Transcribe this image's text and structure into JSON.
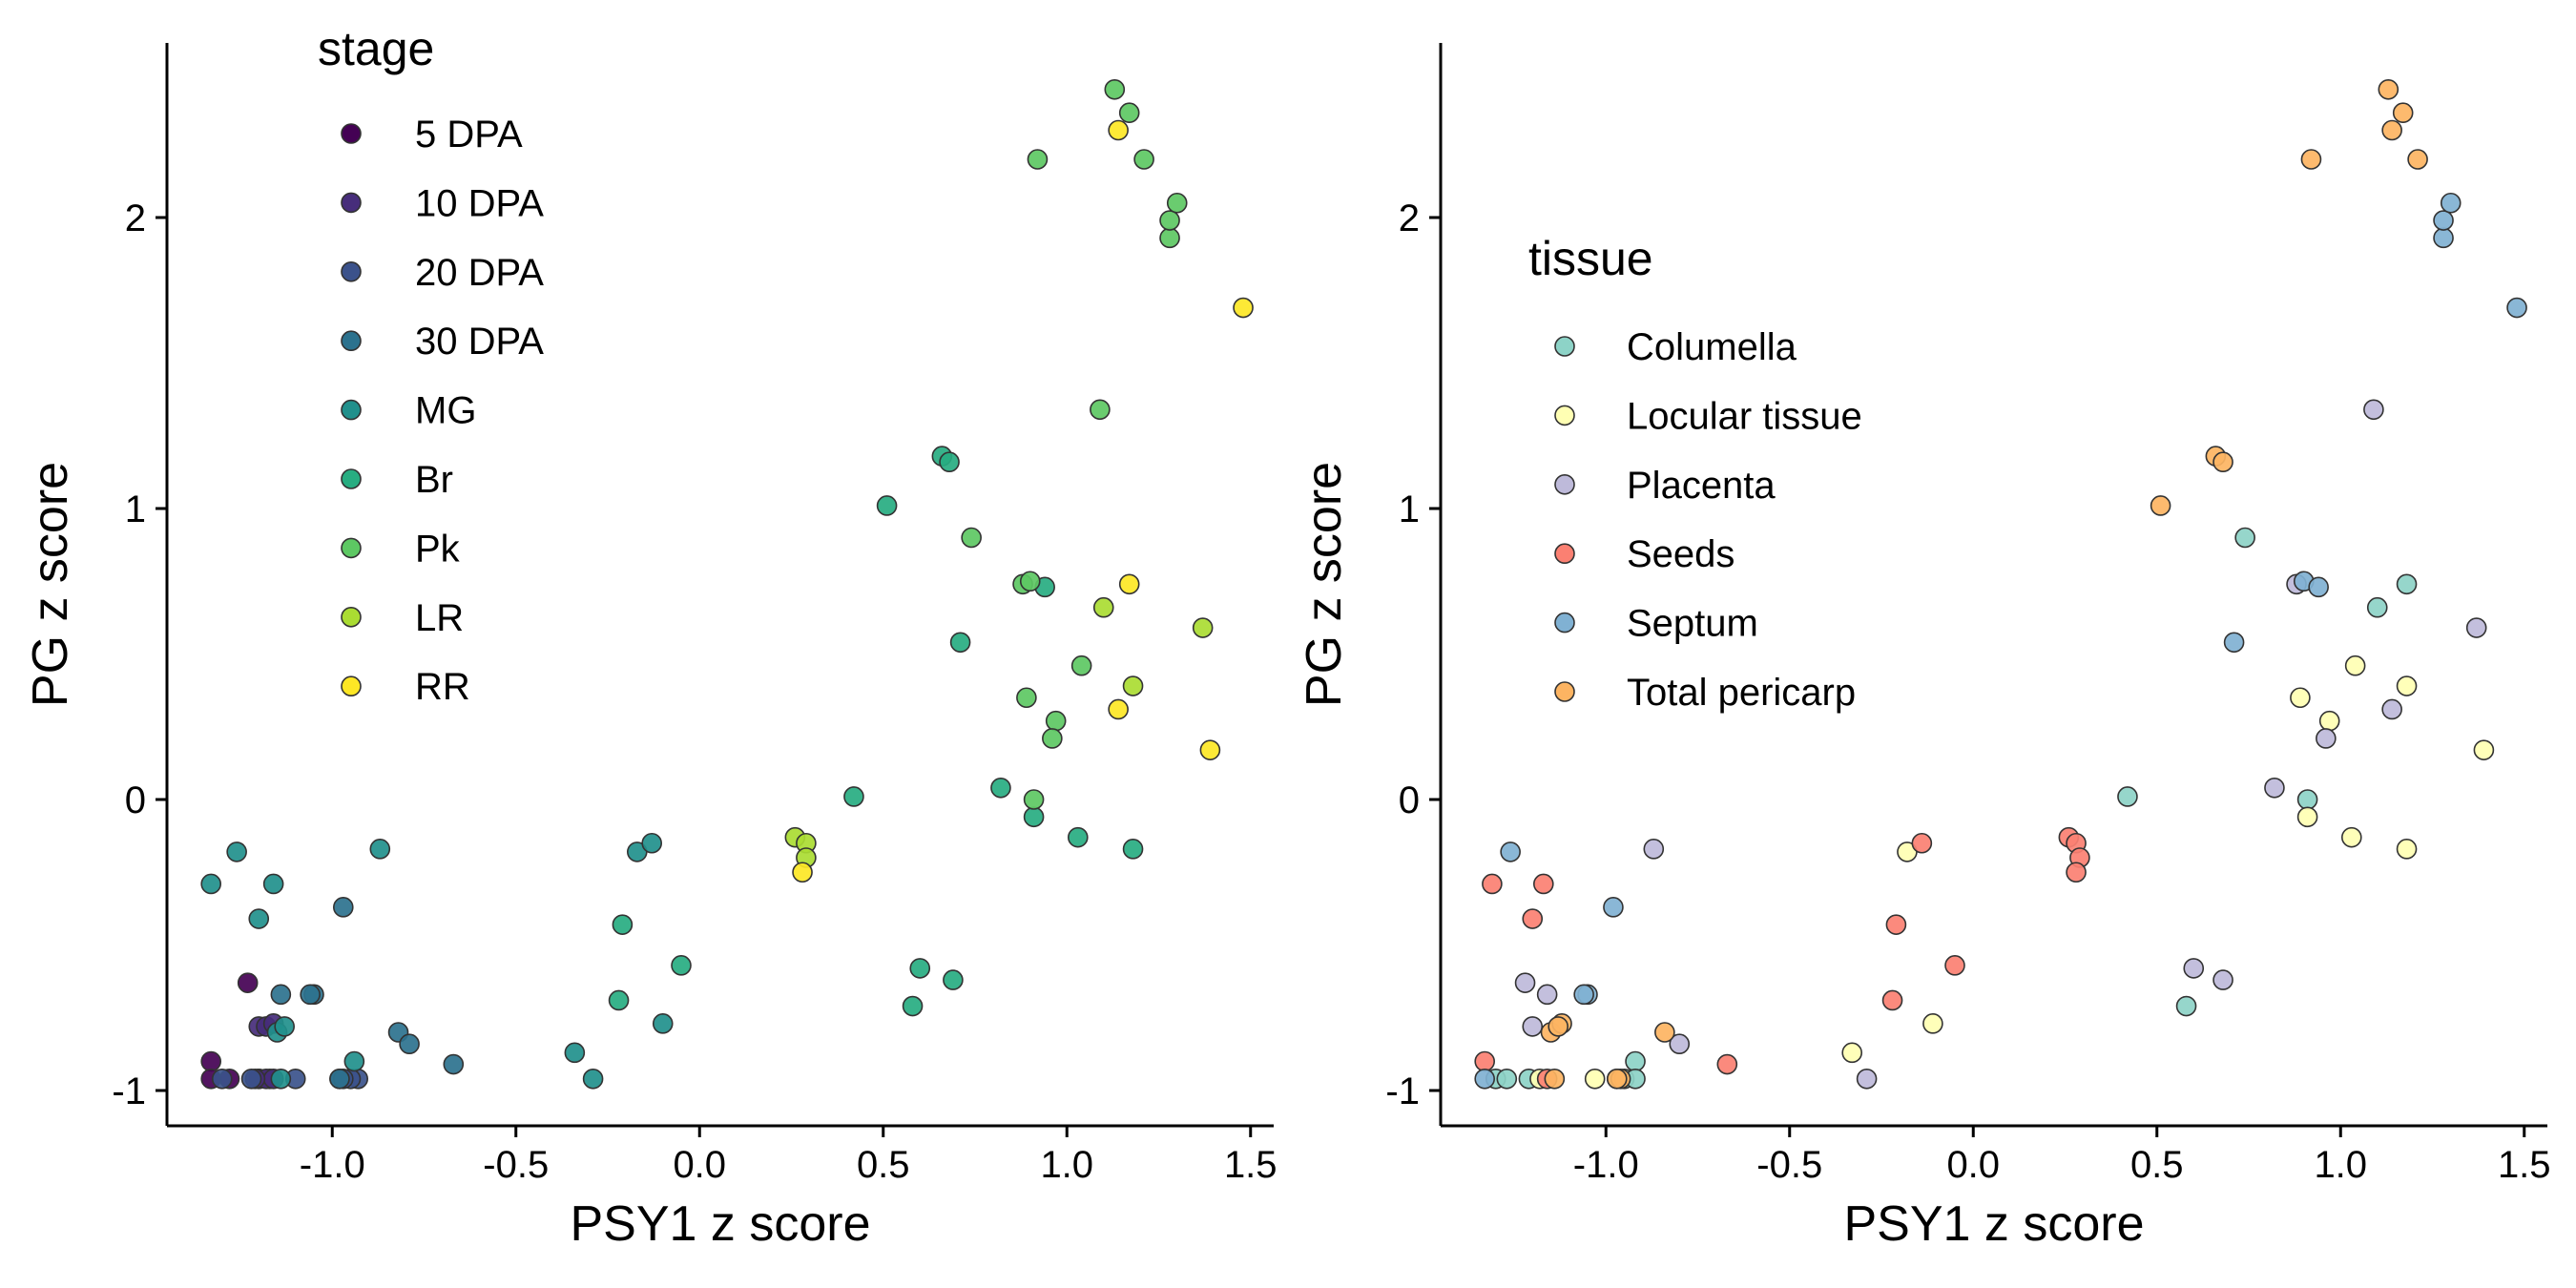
{
  "chart_data": [
    {
      "type": "scatter",
      "xlabel": "PSY1 z score",
      "ylabel": "PG z score",
      "xlim": [
        -1.45,
        1.6
      ],
      "ylim": [
        -1.13,
        2.6
      ],
      "x_ticks": [
        -1.0,
        -0.5,
        0.0,
        0.5,
        1.0,
        1.5
      ],
      "x_tick_labels": [
        "-1.0",
        "-0.5",
        "0.0",
        "0.5",
        "1.0",
        "1.5"
      ],
      "y_ticks": [
        -1,
        0,
        1,
        2
      ],
      "y_tick_labels": [
        "-1",
        "0",
        "1",
        "2"
      ],
      "grid": false,
      "legend_title": "stage",
      "legend_position": "top-left",
      "series": [
        {
          "name": "5 DPA",
          "color": "#440154",
          "points": [
            [
              -1.23,
              -0.63
            ],
            [
              -1.33,
              -0.9
            ],
            [
              -1.33,
              -0.96
            ],
            [
              -1.28,
              -0.96
            ],
            [
              -1.2,
              -0.96
            ],
            [
              -1.2,
              -0.96
            ],
            [
              -1.17,
              -0.96
            ]
          ]
        },
        {
          "name": "10 DPA",
          "color": "#472D7B",
          "points": [
            [
              -1.18,
              -0.96
            ],
            [
              -1.16,
              -0.96
            ],
            [
              -1.21,
              -0.96
            ],
            [
              -1.2,
              -0.78
            ],
            [
              -1.18,
              -0.78
            ],
            [
              -1.16,
              -0.77
            ]
          ]
        },
        {
          "name": "20 DPA",
          "color": "#3B528B",
          "points": [
            [
              -1.3,
              -0.96
            ],
            [
              -1.22,
              -0.96
            ],
            [
              -1.1,
              -0.96
            ],
            [
              -0.98,
              -0.96
            ],
            [
              -0.93,
              -0.96
            ],
            [
              -0.95,
              -0.96
            ],
            [
              -0.97,
              -0.96
            ]
          ]
        },
        {
          "name": "30 DPA",
          "color": "#2C728E",
          "points": [
            [
              -1.05,
              -0.67
            ],
            [
              -1.06,
              -0.67
            ],
            [
              -0.97,
              -0.37
            ],
            [
              -0.82,
              -0.8
            ],
            [
              -0.79,
              -0.84
            ],
            [
              -0.67,
              -0.91
            ],
            [
              -1.14,
              -0.67
            ],
            [
              -0.98,
              -0.96
            ]
          ]
        },
        {
          "name": "MG",
          "color": "#21908C",
          "points": [
            [
              -1.26,
              -0.18
            ],
            [
              -1.33,
              -0.29
            ],
            [
              -1.2,
              -0.41
            ],
            [
              -1.16,
              -0.29
            ],
            [
              -0.87,
              -0.17
            ],
            [
              -0.94,
              -0.9
            ],
            [
              -1.15,
              -0.8
            ],
            [
              -1.13,
              -0.78
            ],
            [
              -1.14,
              -0.96
            ],
            [
              -0.17,
              -0.18
            ],
            [
              -0.13,
              -0.15
            ],
            [
              -0.34,
              -0.87
            ],
            [
              -0.29,
              -0.96
            ],
            [
              -0.1,
              -0.77
            ]
          ]
        },
        {
          "name": "Br",
          "color": "#27AD81",
          "points": [
            [
              -0.21,
              -0.43
            ],
            [
              -0.22,
              -0.69
            ],
            [
              -0.05,
              -0.57
            ],
            [
              0.42,
              0.01
            ],
            [
              0.51,
              1.01
            ],
            [
              0.6,
              -0.58
            ],
            [
              0.58,
              -0.71
            ],
            [
              0.66,
              1.18
            ],
            [
              0.68,
              1.16
            ],
            [
              0.69,
              -0.62
            ],
            [
              0.71,
              0.54
            ],
            [
              0.82,
              0.04
            ],
            [
              0.91,
              -0.06
            ],
            [
              1.03,
              -0.13
            ],
            [
              1.18,
              -0.17
            ],
            [
              0.94,
              0.73
            ]
          ]
        },
        {
          "name": "Pk",
          "color": "#5DC863",
          "points": [
            [
              0.74,
              0.9
            ],
            [
              0.88,
              0.74
            ],
            [
              0.89,
              0.35
            ],
            [
              0.91,
              0.0
            ],
            [
              0.97,
              0.27
            ],
            [
              0.96,
              0.21
            ],
            [
              1.04,
              0.46
            ],
            [
              1.09,
              1.34
            ],
            [
              0.9,
              0.75
            ],
            [
              0.92,
              2.2
            ],
            [
              1.13,
              2.44
            ],
            [
              1.17,
              2.36
            ],
            [
              1.21,
              2.2
            ],
            [
              1.28,
              1.93
            ],
            [
              1.28,
              1.99
            ],
            [
              1.3,
              2.05
            ]
          ]
        },
        {
          "name": "LR",
          "color": "#AADC32",
          "points": [
            [
              0.26,
              -0.13
            ],
            [
              0.29,
              -0.15
            ],
            [
              0.29,
              -0.2
            ],
            [
              1.1,
              0.66
            ],
            [
              1.18,
              0.39
            ],
            [
              1.37,
              0.59
            ]
          ]
        },
        {
          "name": "RR",
          "color": "#FDE725",
          "points": [
            [
              0.28,
              -0.25
            ],
            [
              1.14,
              2.3
            ],
            [
              1.17,
              0.74
            ],
            [
              1.14,
              0.31
            ],
            [
              1.48,
              1.69
            ],
            [
              1.39,
              0.17
            ]
          ]
        }
      ]
    },
    {
      "type": "scatter",
      "xlabel": "PSY1 z score",
      "ylabel": "PG z score",
      "xlim": [
        -1.45,
        1.6
      ],
      "ylim": [
        -1.13,
        2.6
      ],
      "x_ticks": [
        -1.0,
        -0.5,
        0.0,
        0.5,
        1.0,
        1.5
      ],
      "x_tick_labels": [
        "-1.0",
        "-0.5",
        "0.0",
        "0.5",
        "1.0",
        "1.5"
      ],
      "y_ticks": [
        -1,
        0,
        1,
        2
      ],
      "y_tick_labels": [
        "-1",
        "0",
        "1",
        "2"
      ],
      "grid": false,
      "legend_title": "tissue",
      "legend_position": "top-left",
      "series": [
        {
          "name": "Columella",
          "color": "#8DD3C7",
          "points": [
            [
              -1.3,
              -0.96
            ],
            [
              -1.27,
              -0.96
            ],
            [
              -1.21,
              -0.96
            ],
            [
              -0.97,
              -0.96
            ],
            [
              -0.95,
              -0.96
            ],
            [
              -0.92,
              -0.9
            ],
            [
              -0.92,
              -0.96
            ],
            [
              0.42,
              0.01
            ],
            [
              0.58,
              -0.71
            ],
            [
              0.74,
              0.9
            ],
            [
              0.91,
              0.0
            ],
            [
              1.1,
              0.66
            ],
            [
              1.18,
              0.74
            ]
          ]
        },
        {
          "name": "Locular tissue",
          "color": "#FFFFB3",
          "points": [
            [
              -1.18,
              -0.96
            ],
            [
              -1.03,
              -0.96
            ],
            [
              -0.33,
              -0.87
            ],
            [
              -0.11,
              -0.77
            ],
            [
              -0.18,
              -0.18
            ],
            [
              0.89,
              0.35
            ],
            [
              0.91,
              -0.06
            ],
            [
              0.97,
              0.27
            ],
            [
              1.03,
              -0.13
            ],
            [
              1.04,
              0.46
            ],
            [
              1.18,
              0.39
            ],
            [
              1.18,
              -0.17
            ],
            [
              1.39,
              0.17
            ]
          ]
        },
        {
          "name": "Placenta",
          "color": "#BEBADA",
          "points": [
            [
              -1.22,
              -0.63
            ],
            [
              -1.2,
              -0.78
            ],
            [
              -1.16,
              -0.67
            ],
            [
              -0.87,
              -0.17
            ],
            [
              -0.8,
              -0.84
            ],
            [
              -0.29,
              -0.96
            ],
            [
              0.6,
              -0.58
            ],
            [
              0.68,
              -0.62
            ],
            [
              0.82,
              0.04
            ],
            [
              0.88,
              0.74
            ],
            [
              0.96,
              0.21
            ],
            [
              1.09,
              1.34
            ],
            [
              1.14,
              0.31
            ],
            [
              1.37,
              0.59
            ]
          ]
        },
        {
          "name": "Seeds",
          "color": "#FB8072",
          "points": [
            [
              -1.33,
              -0.9
            ],
            [
              -1.31,
              -0.29
            ],
            [
              -1.2,
              -0.41
            ],
            [
              -1.17,
              -0.29
            ],
            [
              -1.16,
              -0.96
            ],
            [
              -0.67,
              -0.91
            ],
            [
              -0.22,
              -0.69
            ],
            [
              -0.21,
              -0.43
            ],
            [
              -0.05,
              -0.57
            ],
            [
              -0.14,
              -0.15
            ],
            [
              0.26,
              -0.13
            ],
            [
              0.28,
              -0.15
            ],
            [
              0.29,
              -0.2
            ],
            [
              0.28,
              -0.25
            ]
          ]
        },
        {
          "name": "Septum",
          "color": "#80B1D3",
          "points": [
            [
              -1.33,
              -0.96
            ],
            [
              -1.26,
              -0.18
            ],
            [
              -1.05,
              -0.67
            ],
            [
              -1.06,
              -0.67
            ],
            [
              -0.98,
              -0.37
            ],
            [
              0.71,
              0.54
            ],
            [
              0.9,
              0.75
            ],
            [
              0.94,
              0.73
            ],
            [
              1.28,
              1.93
            ],
            [
              1.28,
              1.99
            ],
            [
              1.3,
              2.05
            ],
            [
              1.48,
              1.69
            ]
          ]
        },
        {
          "name": "Total pericarp",
          "color": "#FDB462",
          "points": [
            [
              -1.15,
              -0.8
            ],
            [
              -1.12,
              -0.77
            ],
            [
              -1.13,
              -0.78
            ],
            [
              -1.14,
              -0.96
            ],
            [
              -0.96,
              -0.96
            ],
            [
              -0.97,
              -0.96
            ],
            [
              -0.84,
              -0.8
            ],
            [
              0.51,
              1.01
            ],
            [
              0.66,
              1.18
            ],
            [
              0.68,
              1.16
            ],
            [
              0.92,
              2.2
            ],
            [
              1.13,
              2.44
            ],
            [
              1.14,
              2.3
            ],
            [
              1.17,
              2.36
            ],
            [
              1.21,
              2.2
            ]
          ]
        }
      ]
    }
  ]
}
